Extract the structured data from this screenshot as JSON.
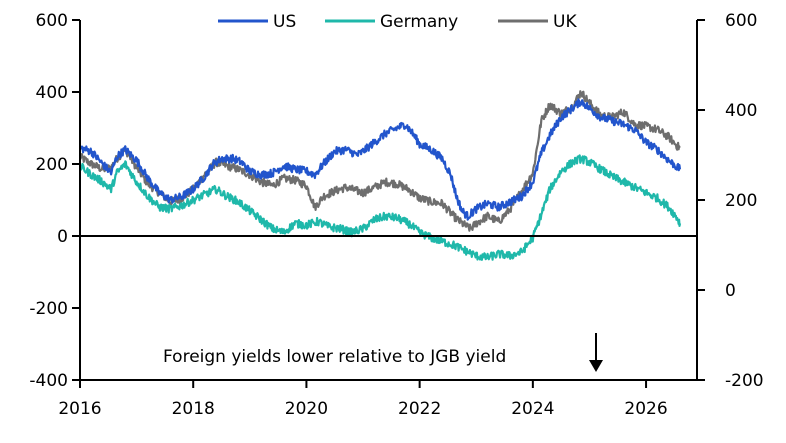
{
  "chart_data": {
    "type": "line",
    "title": "",
    "xlabel": "",
    "ylabel_left": "",
    "ylabel_right": "",
    "x_ticks": [
      "2016",
      "2018",
      "2020",
      "2022",
      "2024",
      "2026"
    ],
    "y_left_ticks": [
      "600",
      "400",
      "200",
      "0",
      "-200",
      "-400"
    ],
    "y_right_ticks": [
      "600",
      "400",
      "200",
      "0",
      "-200"
    ],
    "xlim": [
      2016,
      2026.9
    ],
    "ylim_left": [
      -400,
      600
    ],
    "ylim_right": [
      -200,
      600
    ],
    "legend_placement": "top-center",
    "zero_line": true,
    "annotation": "Foreign yields lower relative to JGB yield",
    "series": [
      {
        "name": "US",
        "color": "#2255cc",
        "axis": "left",
        "points": [
          [
            2016.0,
            245
          ],
          [
            2016.2,
            235
          ],
          [
            2016.4,
            200
          ],
          [
            2016.55,
            175
          ],
          [
            2016.65,
            220
          ],
          [
            2016.8,
            240
          ],
          [
            2017.0,
            210
          ],
          [
            2017.2,
            160
          ],
          [
            2017.4,
            120
          ],
          [
            2017.6,
            100
          ],
          [
            2017.8,
            110
          ],
          [
            2018.0,
            130
          ],
          [
            2018.2,
            165
          ],
          [
            2018.35,
            200
          ],
          [
            2018.5,
            215
          ],
          [
            2018.7,
            215
          ],
          [
            2018.85,
            205
          ],
          [
            2019.0,
            180
          ],
          [
            2019.2,
            170
          ],
          [
            2019.4,
            175
          ],
          [
            2019.6,
            195
          ],
          [
            2019.8,
            185
          ],
          [
            2020.0,
            180
          ],
          [
            2020.15,
            170
          ],
          [
            2020.3,
            200
          ],
          [
            2020.5,
            235
          ],
          [
            2020.7,
            240
          ],
          [
            2020.9,
            225
          ],
          [
            2021.0,
            235
          ],
          [
            2021.2,
            260
          ],
          [
            2021.4,
            285
          ],
          [
            2021.6,
            300
          ],
          [
            2021.75,
            310
          ],
          [
            2021.9,
            280
          ],
          [
            2022.0,
            255
          ],
          [
            2022.2,
            240
          ],
          [
            2022.4,
            215
          ],
          [
            2022.55,
            170
          ],
          [
            2022.65,
            110
          ],
          [
            2022.75,
            70
          ],
          [
            2022.85,
            55
          ],
          [
            2023.0,
            75
          ],
          [
            2023.2,
            90
          ],
          [
            2023.4,
            80
          ],
          [
            2023.6,
            95
          ],
          [
            2023.8,
            110
          ],
          [
            2024.0,
            150
          ],
          [
            2024.15,
            230
          ],
          [
            2024.3,
            280
          ],
          [
            2024.5,
            330
          ],
          [
            2024.7,
            355
          ],
          [
            2024.85,
            375
          ],
          [
            2025.0,
            355
          ],
          [
            2025.2,
            330
          ],
          [
            2025.4,
            320
          ],
          [
            2025.6,
            310
          ],
          [
            2025.8,
            295
          ],
          [
            2026.0,
            260
          ],
          [
            2026.2,
            240
          ],
          [
            2026.4,
            210
          ],
          [
            2026.6,
            185
          ]
        ]
      },
      {
        "name": "Germany",
        "color": "#1fb8aa",
        "axis": "left",
        "points": [
          [
            2016.0,
            195
          ],
          [
            2016.2,
            170
          ],
          [
            2016.4,
            150
          ],
          [
            2016.55,
            130
          ],
          [
            2016.65,
            175
          ],
          [
            2016.8,
            200
          ],
          [
            2017.0,
            150
          ],
          [
            2017.2,
            110
          ],
          [
            2017.4,
            80
          ],
          [
            2017.6,
            75
          ],
          [
            2017.8,
            85
          ],
          [
            2018.0,
            100
          ],
          [
            2018.2,
            115
          ],
          [
            2018.4,
            130
          ],
          [
            2018.6,
            110
          ],
          [
            2018.8,
            95
          ],
          [
            2019.0,
            70
          ],
          [
            2019.2,
            45
          ],
          [
            2019.4,
            20
          ],
          [
            2019.6,
            10
          ],
          [
            2019.8,
            35
          ],
          [
            2020.0,
            30
          ],
          [
            2020.2,
            40
          ],
          [
            2020.4,
            25
          ],
          [
            2020.6,
            20
          ],
          [
            2020.8,
            10
          ],
          [
            2021.0,
            20
          ],
          [
            2021.2,
            45
          ],
          [
            2021.4,
            55
          ],
          [
            2021.6,
            50
          ],
          [
            2021.8,
            35
          ],
          [
            2022.0,
            10
          ],
          [
            2022.2,
            -5
          ],
          [
            2022.4,
            -15
          ],
          [
            2022.6,
            -25
          ],
          [
            2022.8,
            -40
          ],
          [
            2023.0,
            -55
          ],
          [
            2023.2,
            -60
          ],
          [
            2023.4,
            -50
          ],
          [
            2023.6,
            -55
          ],
          [
            2023.8,
            -45
          ],
          [
            2024.0,
            -5
          ],
          [
            2024.15,
            60
          ],
          [
            2024.3,
            130
          ],
          [
            2024.5,
            180
          ],
          [
            2024.7,
            205
          ],
          [
            2024.85,
            215
          ],
          [
            2025.0,
            205
          ],
          [
            2025.2,
            185
          ],
          [
            2025.4,
            165
          ],
          [
            2025.6,
            150
          ],
          [
            2025.8,
            135
          ],
          [
            2026.0,
            120
          ],
          [
            2026.2,
            105
          ],
          [
            2026.4,
            80
          ],
          [
            2026.55,
            50
          ],
          [
            2026.6,
            35
          ]
        ]
      },
      {
        "name": "UK",
        "color": "#6e6e6e",
        "axis": "left",
        "points": [
          [
            2016.0,
            220
          ],
          [
            2016.2,
            200
          ],
          [
            2016.4,
            185
          ],
          [
            2016.55,
            190
          ],
          [
            2016.65,
            215
          ],
          [
            2016.8,
            240
          ],
          [
            2017.0,
            190
          ],
          [
            2017.2,
            145
          ],
          [
            2017.4,
            120
          ],
          [
            2017.6,
            95
          ],
          [
            2017.8,
            105
          ],
          [
            2018.0,
            130
          ],
          [
            2018.2,
            170
          ],
          [
            2018.4,
            205
          ],
          [
            2018.6,
            195
          ],
          [
            2018.8,
            185
          ],
          [
            2019.0,
            170
          ],
          [
            2019.2,
            150
          ],
          [
            2019.4,
            140
          ],
          [
            2019.6,
            160
          ],
          [
            2019.8,
            155
          ],
          [
            2020.0,
            140
          ],
          [
            2020.15,
            80
          ],
          [
            2020.3,
            110
          ],
          [
            2020.5,
            125
          ],
          [
            2020.7,
            135
          ],
          [
            2020.9,
            125
          ],
          [
            2021.0,
            120
          ],
          [
            2021.2,
            135
          ],
          [
            2021.4,
            150
          ],
          [
            2021.6,
            145
          ],
          [
            2021.8,
            130
          ],
          [
            2022.0,
            105
          ],
          [
            2022.2,
            95
          ],
          [
            2022.4,
            90
          ],
          [
            2022.6,
            55
          ],
          [
            2022.75,
            35
          ],
          [
            2022.9,
            20
          ],
          [
            2023.0,
            35
          ],
          [
            2023.2,
            55
          ],
          [
            2023.4,
            40
          ],
          [
            2023.6,
            75
          ],
          [
            2023.8,
            125
          ],
          [
            2024.0,
            175
          ],
          [
            2024.15,
            320
          ],
          [
            2024.3,
            365
          ],
          [
            2024.5,
            340
          ],
          [
            2024.7,
            360
          ],
          [
            2024.85,
            400
          ],
          [
            2025.0,
            370
          ],
          [
            2025.2,
            335
          ],
          [
            2025.4,
            330
          ],
          [
            2025.6,
            345
          ],
          [
            2025.8,
            310
          ],
          [
            2026.0,
            305
          ],
          [
            2026.2,
            295
          ],
          [
            2026.4,
            275
          ],
          [
            2026.55,
            250
          ],
          [
            2026.6,
            245
          ]
        ]
      }
    ]
  }
}
